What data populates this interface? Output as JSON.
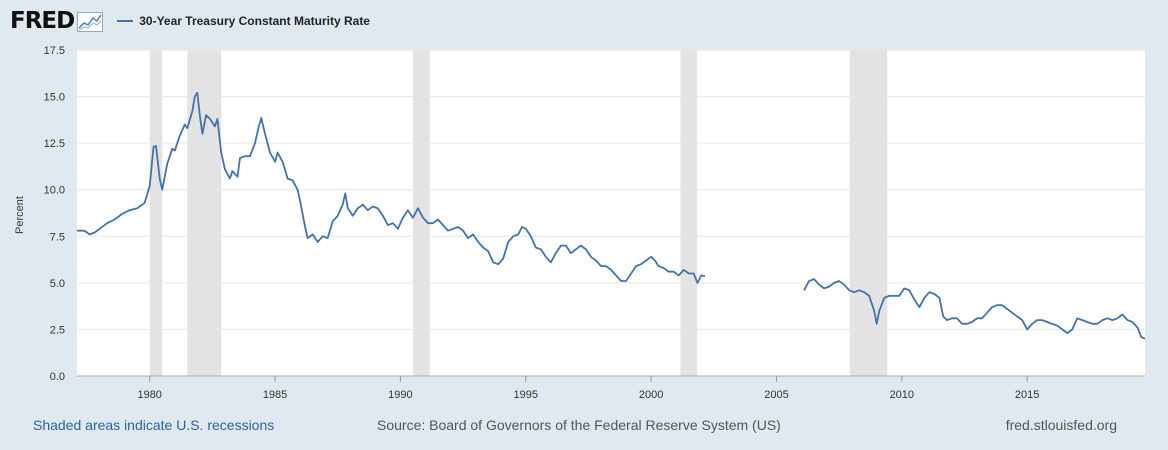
{
  "header": {
    "logo_text": "FRED",
    "logo_icon": "chart-line-icon",
    "legend_label": "30-Year Treasury Constant Maturity Rate",
    "legend_color": "#4572a7"
  },
  "footer": {
    "left": "Shaded areas indicate U.S. recessions",
    "center": "Source: Board of Governors of the Federal Reserve System (US)",
    "right": "fred.stlouisfed.org"
  },
  "chart_data": {
    "type": "line",
    "title": "",
    "xlabel": "",
    "ylabel": "Percent",
    "xlim": [
      1977.1,
      2019.7
    ],
    "ylim": [
      0,
      17.5
    ],
    "y_ticks": [
      0.0,
      2.5,
      5.0,
      7.5,
      10.0,
      12.5,
      15.0,
      17.5
    ],
    "y_tick_labels": [
      "0.0",
      "2.5",
      "5.0",
      "7.5",
      "10.0",
      "12.5",
      "15.0",
      "17.5"
    ],
    "x_ticks": [
      1980,
      1985,
      1990,
      1995,
      2000,
      2005,
      2010,
      2015
    ],
    "x_tick_labels": [
      "1980",
      "1985",
      "1990",
      "1995",
      "2000",
      "2005",
      "2010",
      "2015"
    ],
    "grid": true,
    "line_color": "#4572a7",
    "recession_color": "#e3e3e3",
    "recessions": [
      [
        1980.0,
        1980.5
      ],
      [
        1981.5,
        1982.85
      ],
      [
        1990.5,
        1991.17
      ],
      [
        2001.17,
        2001.83
      ],
      [
        2007.92,
        2009.42
      ]
    ],
    "series": [
      {
        "name": "30-Year Treasury Constant Maturity Rate",
        "segments": [
          [
            [
              1977.1,
              7.8
            ],
            [
              1977.4,
              7.8
            ],
            [
              1977.6,
              7.6
            ],
            [
              1977.8,
              7.7
            ],
            [
              1978.0,
              7.9
            ],
            [
              1978.3,
              8.2
            ],
            [
              1978.6,
              8.4
            ],
            [
              1978.9,
              8.7
            ],
            [
              1979.2,
              8.9
            ],
            [
              1979.5,
              9.0
            ],
            [
              1979.8,
              9.3
            ],
            [
              1980.0,
              10.2
            ],
            [
              1980.15,
              12.3
            ],
            [
              1980.25,
              12.35
            ],
            [
              1980.4,
              10.6
            ],
            [
              1980.5,
              10.0
            ],
            [
              1980.7,
              11.4
            ],
            [
              1980.9,
              12.2
            ],
            [
              1981.0,
              12.1
            ],
            [
              1981.2,
              12.9
            ],
            [
              1981.4,
              13.5
            ],
            [
              1981.5,
              13.3
            ],
            [
              1981.7,
              14.2
            ],
            [
              1981.8,
              15.0
            ],
            [
              1981.9,
              15.2
            ],
            [
              1982.0,
              14.0
            ],
            [
              1982.1,
              13.0
            ],
            [
              1982.25,
              14.0
            ],
            [
              1982.4,
              13.8
            ],
            [
              1982.6,
              13.4
            ],
            [
              1982.7,
              13.8
            ],
            [
              1982.85,
              12.0
            ],
            [
              1983.0,
              11.1
            ],
            [
              1983.2,
              10.6
            ],
            [
              1983.3,
              11.0
            ],
            [
              1983.5,
              10.7
            ],
            [
              1983.6,
              11.7
            ],
            [
              1983.8,
              11.8
            ],
            [
              1984.0,
              11.8
            ],
            [
              1984.2,
              12.5
            ],
            [
              1984.35,
              13.4
            ],
            [
              1984.45,
              13.85
            ],
            [
              1984.6,
              13.0
            ],
            [
              1984.8,
              12.0
            ],
            [
              1985.0,
              11.5
            ],
            [
              1985.1,
              12.0
            ],
            [
              1985.3,
              11.5
            ],
            [
              1985.5,
              10.6
            ],
            [
              1985.7,
              10.5
            ],
            [
              1985.9,
              10.0
            ],
            [
              1986.0,
              9.4
            ],
            [
              1986.2,
              8.0
            ],
            [
              1986.3,
              7.4
            ],
            [
              1986.5,
              7.6
            ],
            [
              1986.7,
              7.2
            ],
            [
              1986.9,
              7.5
            ],
            [
              1987.1,
              7.4
            ],
            [
              1987.3,
              8.3
            ],
            [
              1987.5,
              8.6
            ],
            [
              1987.7,
              9.2
            ],
            [
              1987.8,
              9.8
            ],
            [
              1987.9,
              9.0
            ],
            [
              1988.1,
              8.6
            ],
            [
              1988.3,
              9.0
            ],
            [
              1988.5,
              9.2
            ],
            [
              1988.7,
              8.9
            ],
            [
              1988.9,
              9.1
            ],
            [
              1989.1,
              9.0
            ],
            [
              1989.3,
              8.6
            ],
            [
              1989.5,
              8.1
            ],
            [
              1989.7,
              8.2
            ],
            [
              1989.9,
              7.9
            ],
            [
              1990.1,
              8.5
            ],
            [
              1990.3,
              8.9
            ],
            [
              1990.5,
              8.5
            ],
            [
              1990.7,
              9.0
            ],
            [
              1990.9,
              8.5
            ],
            [
              1991.1,
              8.2
            ],
            [
              1991.3,
              8.2
            ],
            [
              1991.5,
              8.4
            ],
            [
              1991.7,
              8.1
            ],
            [
              1991.9,
              7.8
            ],
            [
              1992.1,
              7.9
            ],
            [
              1992.3,
              8.0
            ],
            [
              1992.5,
              7.8
            ],
            [
              1992.7,
              7.4
            ],
            [
              1992.9,
              7.6
            ],
            [
              1993.1,
              7.2
            ],
            [
              1993.3,
              6.9
            ],
            [
              1993.5,
              6.7
            ],
            [
              1993.7,
              6.1
            ],
            [
              1993.9,
              6.0
            ],
            [
              1994.1,
              6.3
            ],
            [
              1994.3,
              7.2
            ],
            [
              1994.5,
              7.5
            ],
            [
              1994.7,
              7.6
            ],
            [
              1994.85,
              8.0
            ],
            [
              1995.0,
              7.9
            ],
            [
              1995.2,
              7.5
            ],
            [
              1995.4,
              6.9
            ],
            [
              1995.6,
              6.8
            ],
            [
              1995.8,
              6.4
            ],
            [
              1996.0,
              6.1
            ],
            [
              1996.2,
              6.6
            ],
            [
              1996.4,
              7.0
            ],
            [
              1996.6,
              7.0
            ],
            [
              1996.8,
              6.6
            ],
            [
              1997.0,
              6.8
            ],
            [
              1997.2,
              7.0
            ],
            [
              1997.4,
              6.8
            ],
            [
              1997.6,
              6.4
            ],
            [
              1997.8,
              6.2
            ],
            [
              1998.0,
              5.9
            ],
            [
              1998.2,
              5.9
            ],
            [
              1998.4,
              5.7
            ],
            [
              1998.6,
              5.4
            ],
            [
              1998.8,
              5.1
            ],
            [
              1999.0,
              5.1
            ],
            [
              1999.2,
              5.5
            ],
            [
              1999.4,
              5.9
            ],
            [
              1999.6,
              6.0
            ],
            [
              1999.8,
              6.2
            ],
            [
              2000.0,
              6.4
            ],
            [
              2000.15,
              6.2
            ],
            [
              2000.3,
              5.9
            ],
            [
              2000.5,
              5.8
            ],
            [
              2000.7,
              5.6
            ],
            [
              2000.9,
              5.6
            ],
            [
              2001.1,
              5.4
            ],
            [
              2001.3,
              5.7
            ],
            [
              2001.5,
              5.5
            ],
            [
              2001.7,
              5.5
            ],
            [
              2001.85,
              5.0
            ],
            [
              2002.0,
              5.4
            ],
            [
              2002.15,
              5.35
            ]
          ],
          [
            [
              2006.1,
              4.6
            ],
            [
              2006.3,
              5.1
            ],
            [
              2006.5,
              5.2
            ],
            [
              2006.7,
              4.9
            ],
            [
              2006.9,
              4.7
            ],
            [
              2007.1,
              4.8
            ],
            [
              2007.3,
              5.0
            ],
            [
              2007.5,
              5.1
            ],
            [
              2007.7,
              4.9
            ],
            [
              2007.9,
              4.6
            ],
            [
              2008.1,
              4.5
            ],
            [
              2008.3,
              4.6
            ],
            [
              2008.5,
              4.5
            ],
            [
              2008.7,
              4.3
            ],
            [
              2008.9,
              3.5
            ],
            [
              2009.0,
              2.8
            ],
            [
              2009.1,
              3.5
            ],
            [
              2009.3,
              4.2
            ],
            [
              2009.5,
              4.3
            ],
            [
              2009.7,
              4.3
            ],
            [
              2009.9,
              4.3
            ],
            [
              2010.1,
              4.7
            ],
            [
              2010.3,
              4.6
            ],
            [
              2010.5,
              4.1
            ],
            [
              2010.7,
              3.7
            ],
            [
              2010.9,
              4.2
            ],
            [
              2011.1,
              4.5
            ],
            [
              2011.3,
              4.4
            ],
            [
              2011.5,
              4.2
            ],
            [
              2011.65,
              3.2
            ],
            [
              2011.8,
              3.0
            ],
            [
              2012.0,
              3.1
            ],
            [
              2012.2,
              3.1
            ],
            [
              2012.4,
              2.8
            ],
            [
              2012.6,
              2.8
            ],
            [
              2012.8,
              2.9
            ],
            [
              2013.0,
              3.1
            ],
            [
              2013.2,
              3.1
            ],
            [
              2013.4,
              3.4
            ],
            [
              2013.6,
              3.7
            ],
            [
              2013.8,
              3.8
            ],
            [
              2014.0,
              3.8
            ],
            [
              2014.2,
              3.6
            ],
            [
              2014.4,
              3.4
            ],
            [
              2014.6,
              3.2
            ],
            [
              2014.8,
              3.0
            ],
            [
              2015.0,
              2.5
            ],
            [
              2015.2,
              2.8
            ],
            [
              2015.4,
              3.0
            ],
            [
              2015.6,
              3.0
            ],
            [
              2015.8,
              2.9
            ],
            [
              2016.0,
              2.8
            ],
            [
              2016.2,
              2.7
            ],
            [
              2016.4,
              2.5
            ],
            [
              2016.6,
              2.3
            ],
            [
              2016.8,
              2.5
            ],
            [
              2017.0,
              3.1
            ],
            [
              2017.2,
              3.0
            ],
            [
              2017.4,
              2.9
            ],
            [
              2017.6,
              2.8
            ],
            [
              2017.8,
              2.8
            ],
            [
              2018.0,
              3.0
            ],
            [
              2018.2,
              3.1
            ],
            [
              2018.4,
              3.0
            ],
            [
              2018.6,
              3.1
            ],
            [
              2018.8,
              3.3
            ],
            [
              2019.0,
              3.0
            ],
            [
              2019.2,
              2.9
            ],
            [
              2019.4,
              2.6
            ],
            [
              2019.55,
              2.1
            ],
            [
              2019.7,
              2.0
            ]
          ]
        ]
      }
    ]
  }
}
